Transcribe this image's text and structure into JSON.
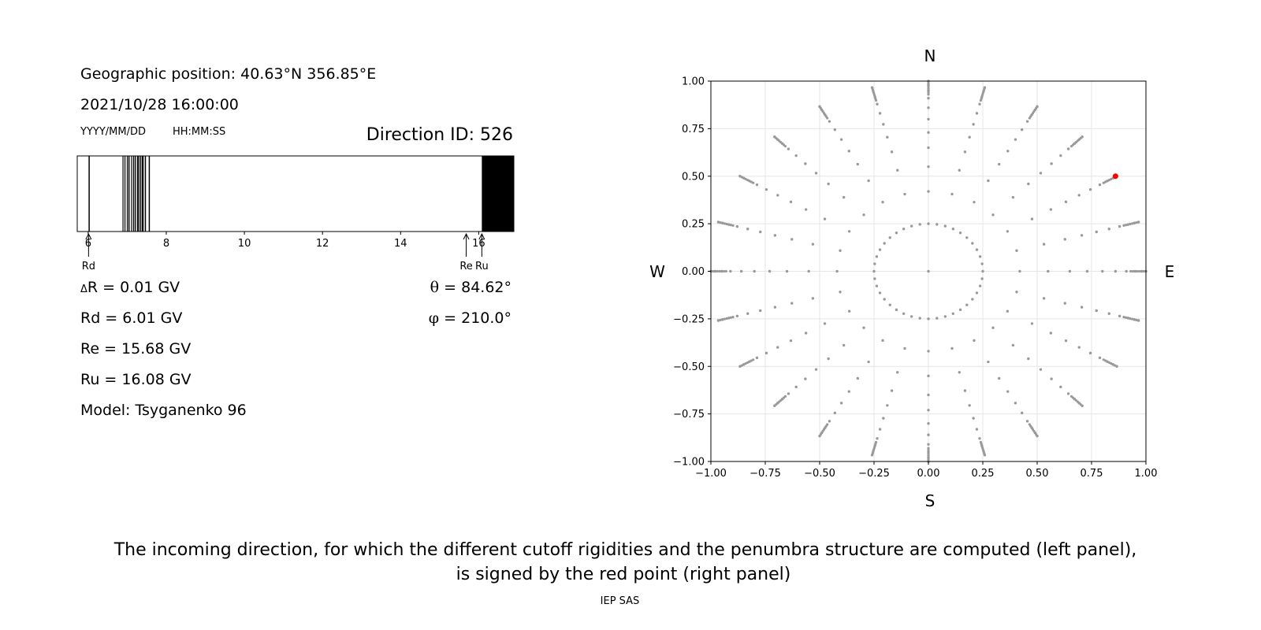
{
  "left_panel": {
    "geo_position": "Geographic position: 40.63°N 356.85°E",
    "datetime": "2021/10/28 16:00:00",
    "date_format": "YYYY/MM/DD",
    "time_format": "HH:MM:SS",
    "direction_id": "Direction ID: 526",
    "delta_r_symbol": "Δ",
    "delta_r_value": "R = 0.01 GV",
    "rd": "Rd = 6.01 GV",
    "re": "Re = 15.68 GV",
    "ru": "Ru = 16.08 GV",
    "model": "Model: Tsyganenko 96",
    "theta_symbol": "θ",
    "theta_value": "= 84.62°",
    "phi_symbol": "φ",
    "phi_value": "= 210.0°"
  },
  "caption": {
    "line1": "The incoming direction, for which the different cutoff rigidities and the penumbra structure are computed (left panel),",
    "line2": "is signed by the red point (right panel)",
    "footer": "IEP SAS"
  },
  "chart_data": [
    {
      "type": "penumbra-bar",
      "xlim": [
        5.72,
        16.9
      ],
      "xticks": [
        6,
        8,
        10,
        12,
        14,
        16
      ],
      "allowed_bands": [
        [
          6.01,
          6.04
        ],
        [
          6.88,
          6.9
        ],
        [
          6.93,
          6.95
        ],
        [
          6.99,
          7.0
        ],
        [
          7.03,
          7.06
        ],
        [
          7.1,
          7.12
        ],
        [
          7.15,
          7.16
        ],
        [
          7.19,
          7.22
        ],
        [
          7.25,
          7.26
        ],
        [
          7.28,
          7.31
        ],
        [
          7.33,
          7.35
        ],
        [
          7.37,
          7.42
        ],
        [
          7.45,
          7.48
        ],
        [
          7.55,
          7.58
        ],
        [
          16.08,
          16.9
        ]
      ],
      "markers": [
        {
          "label": "Rd",
          "value": 6.01
        },
        {
          "label": "Re",
          "value": 15.68
        },
        {
          "label": "Ru",
          "value": 16.08
        }
      ],
      "colors": {
        "allowed": "#000000",
        "forbidden": "#ffffff"
      }
    },
    {
      "type": "scatter",
      "xlim": [
        -1.0,
        1.0
      ],
      "ylim": [
        -1.0,
        1.0
      ],
      "xticks": [
        "−1.00",
        "−0.75",
        "−0.50",
        "−0.25",
        "0.00",
        "0.25",
        "0.50",
        "0.75",
        "1.00"
      ],
      "yticks": [
        "1.00",
        "0.75",
        "0.50",
        "0.25",
        "0.00",
        "−0.25",
        "−0.50",
        "−0.75",
        "−1.00"
      ],
      "compass": {
        "N": "N",
        "S": "S",
        "E": "E",
        "W": "W"
      },
      "grid": true,
      "grid_points": {
        "spoke_count": 24,
        "ring_radii": [
          0.25,
          0.42,
          0.55,
          0.65,
          0.73,
          0.8,
          0.86,
          0.91,
          0.95,
          0.98,
          1.0
        ]
      },
      "highlight_point": {
        "x": 0.86,
        "y": 0.5
      },
      "colors": {
        "points": "#999999",
        "highlight": "#ff0000"
      }
    }
  ]
}
